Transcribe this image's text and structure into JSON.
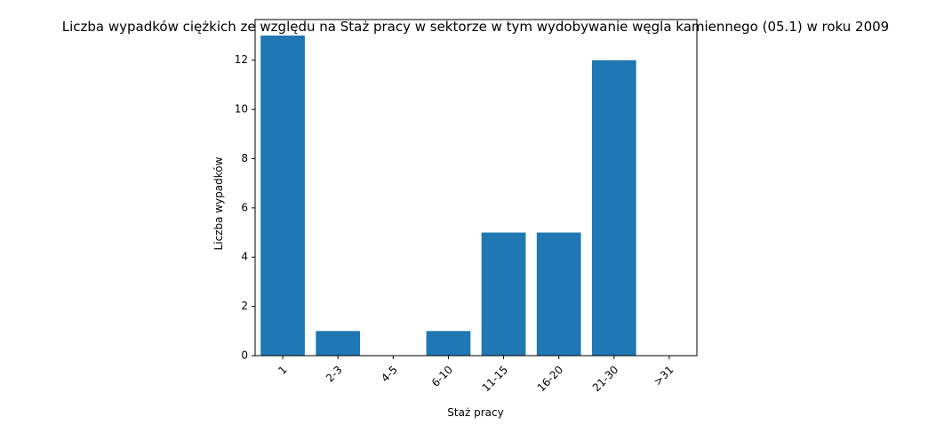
{
  "chart_data": {
    "type": "bar",
    "title": "Liczba wypadków ciężkich ze względu na Staż pracy w sektorze    w tym wydobywanie węgla kamiennego (05.1) w roku 2009",
    "xlabel": "Staż pracy",
    "ylabel": "Liczba wypadków",
    "categories": [
      "1",
      "2-3",
      "4-5",
      "6-10",
      "11-15",
      "16-20",
      "21-30",
      ">31"
    ],
    "values": [
      13,
      1,
      0,
      1,
      5,
      5,
      12,
      0
    ],
    "ylim": [
      0,
      13.65
    ],
    "yticks": [
      0,
      2,
      4,
      6,
      8,
      10,
      12
    ],
    "grid": false,
    "colors": {
      "bar": "#1f77b4"
    }
  }
}
